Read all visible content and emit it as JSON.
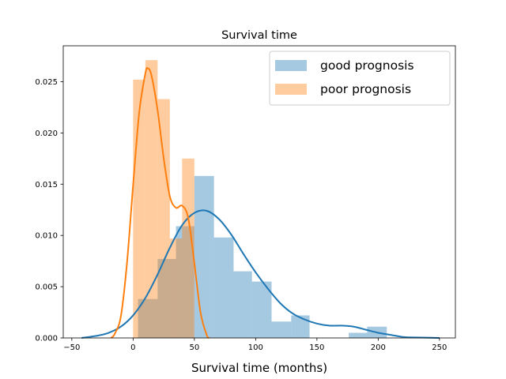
{
  "chart_data": {
    "type": "histogram",
    "title": "Survival time",
    "xlabel": "Survival time (months)",
    "ylabel": "",
    "xlim": [
      -57,
      263
    ],
    "ylim": [
      0,
      0.0285
    ],
    "xticks": [
      -50,
      0,
      50,
      100,
      150,
      200,
      250
    ],
    "yticks": [
      0.0,
      0.005,
      0.01,
      0.015,
      0.02,
      0.025
    ],
    "ytick_labels": [
      "0.000",
      "0.005",
      "0.010",
      "0.015",
      "0.020",
      "0.025"
    ],
    "grid": false,
    "legend_position": "top-right",
    "series": [
      {
        "name": "good prognosis",
        "color": "#1f77b4",
        "bar_alpha": 0.4,
        "bins": [
          {
            "x0": 4,
            "x1": 20,
            "value": 0.0038
          },
          {
            "x0": 20,
            "x1": 35,
            "value": 0.0077
          },
          {
            "x0": 35,
            "x1": 50,
            "value": 0.0109
          },
          {
            "x0": 50,
            "x1": 66,
            "value": 0.0158
          },
          {
            "x0": 66,
            "x1": 82,
            "value": 0.0098
          },
          {
            "x0": 82,
            "x1": 97,
            "value": 0.0065
          },
          {
            "x0": 97,
            "x1": 113,
            "value": 0.0055
          },
          {
            "x0": 113,
            "x1": 129,
            "value": 0.0016
          },
          {
            "x0": 129,
            "x1": 144,
            "value": 0.0022
          },
          {
            "x0": 144,
            "x1": 160,
            "value": 0.0
          },
          {
            "x0": 160,
            "x1": 176,
            "value": 0.0
          },
          {
            "x0": 176,
            "x1": 191,
            "value": 0.0005
          },
          {
            "x0": 191,
            "x1": 207,
            "value": 0.0011
          }
        ],
        "kde": [
          [
            -42,
            0.0
          ],
          [
            -30,
            0.0002
          ],
          [
            -20,
            0.0005
          ],
          [
            -10,
            0.0011
          ],
          [
            0,
            0.0022
          ],
          [
            10,
            0.0039
          ],
          [
            20,
            0.0062
          ],
          [
            30,
            0.0088
          ],
          [
            40,
            0.011
          ],
          [
            50,
            0.0122
          ],
          [
            60,
            0.0124
          ],
          [
            70,
            0.0116
          ],
          [
            80,
            0.0101
          ],
          [
            90,
            0.0082
          ],
          [
            100,
            0.0064
          ],
          [
            110,
            0.0048
          ],
          [
            120,
            0.0034
          ],
          [
            130,
            0.0024
          ],
          [
            140,
            0.0018
          ],
          [
            150,
            0.0014
          ],
          [
            160,
            0.0012
          ],
          [
            170,
            0.0012
          ],
          [
            180,
            0.0011
          ],
          [
            190,
            0.0008
          ],
          [
            200,
            0.0005
          ],
          [
            210,
            0.0003
          ],
          [
            220,
            0.0001
          ],
          [
            230,
            5e-05
          ],
          [
            250,
            0.0
          ]
        ]
      },
      {
        "name": "poor prognosis",
        "color": "#ff7f0e",
        "bar_alpha": 0.4,
        "bins": [
          {
            "x0": 0,
            "x1": 10,
            "value": 0.0252
          },
          {
            "x0": 10,
            "x1": 20,
            "value": 0.0271
          },
          {
            "x0": 20,
            "x1": 30,
            "value": 0.0233
          },
          {
            "x0": 30,
            "x1": 40,
            "value": 0.0097
          },
          {
            "x0": 40,
            "x1": 50,
            "value": 0.0175
          }
        ],
        "kde": [
          [
            -18,
            0.0
          ],
          [
            -15,
            0.0004
          ],
          [
            -10,
            0.0021
          ],
          [
            -5,
            0.0073
          ],
          [
            0,
            0.0149
          ],
          [
            5,
            0.022
          ],
          [
            10,
            0.0258
          ],
          [
            12,
            0.0263
          ],
          [
            15,
            0.0256
          ],
          [
            20,
            0.0222
          ],
          [
            25,
            0.0175
          ],
          [
            30,
            0.0138
          ],
          [
            35,
            0.0127
          ],
          [
            40,
            0.0129
          ],
          [
            45,
            0.0117
          ],
          [
            50,
            0.0073
          ],
          [
            55,
            0.0025
          ],
          [
            60,
            0.0003
          ],
          [
            62,
            0.0
          ]
        ]
      }
    ]
  }
}
